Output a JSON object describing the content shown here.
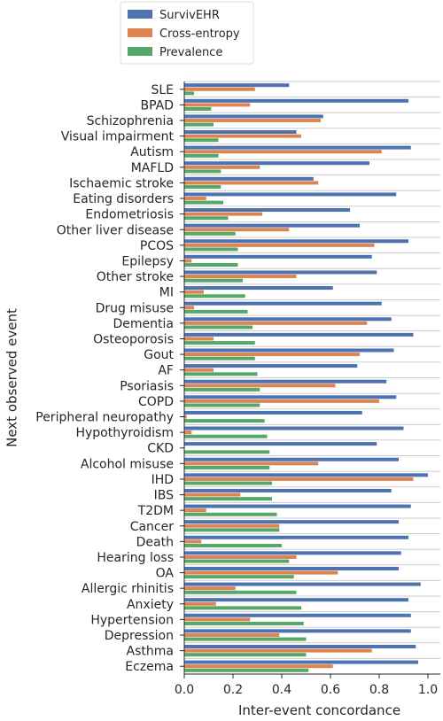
{
  "chart_data": {
    "type": "bar",
    "orientation": "horizontal",
    "xlabel": "Inter-event concordance",
    "ylabel": "Next observed event",
    "xlim": [
      0.0,
      1.05
    ],
    "xticks": [
      "0.0",
      "0.2",
      "0.4",
      "0.6",
      "0.8",
      "1.0"
    ],
    "grid": "horizontal lines between categories",
    "legend_position": "top",
    "categories": [
      "SLE",
      "BPAD",
      "Schizophrenia",
      "Visual impairment",
      "Autism",
      "MAFLD",
      "Ischaemic stroke",
      "Eating disorders",
      "Endometriosis",
      "Other liver disease",
      "PCOS",
      "Epilepsy",
      "Other stroke",
      "MI",
      "Drug misuse",
      "Dementia",
      "Osteoporosis",
      "Gout",
      "AF",
      "Psoriasis",
      "COPD",
      "Peripheral neuropathy",
      "Hypothyroidism",
      "CKD",
      "Alcohol misuse",
      "IHD",
      "IBS",
      "T2DM",
      "Cancer",
      "Death",
      "Hearing loss",
      "OA",
      "Allergic rhinitis",
      "Anxiety",
      "Hypertension",
      "Depression",
      "Asthma",
      "Eczema"
    ],
    "series": [
      {
        "name": "SurvivEHR",
        "color": "#4c72b0",
        "values": [
          0.43,
          0.92,
          0.57,
          0.46,
          0.93,
          0.76,
          0.53,
          0.87,
          0.68,
          0.72,
          0.92,
          0.77,
          0.79,
          0.61,
          0.81,
          0.85,
          0.94,
          0.86,
          0.71,
          0.83,
          0.87,
          0.73,
          0.9,
          0.79,
          0.88,
          1.0,
          0.85,
          0.93,
          0.88,
          0.92,
          0.89,
          0.88,
          0.97,
          0.92,
          0.93,
          0.93,
          0.95,
          0.96
        ]
      },
      {
        "name": "Cross-entropy",
        "color": "#dd8452",
        "values": [
          0.29,
          0.27,
          0.56,
          0.48,
          0.81,
          0.31,
          0.55,
          0.09,
          0.32,
          0.43,
          0.78,
          0.03,
          0.46,
          0.08,
          0.04,
          0.75,
          0.12,
          0.72,
          0.12,
          0.62,
          0.8,
          0.01,
          0.03,
          0.0,
          0.55,
          0.94,
          0.23,
          0.09,
          0.39,
          0.07,
          0.46,
          0.63,
          0.21,
          0.13,
          0.27,
          0.39,
          0.77,
          0.61
        ]
      },
      {
        "name": "Prevalence",
        "color": "#55a868",
        "values": [
          0.04,
          0.11,
          0.12,
          0.14,
          0.14,
          0.15,
          0.15,
          0.16,
          0.18,
          0.21,
          0.22,
          0.22,
          0.24,
          0.25,
          0.26,
          0.28,
          0.29,
          0.29,
          0.3,
          0.31,
          0.31,
          0.33,
          0.34,
          0.35,
          0.35,
          0.36,
          0.36,
          0.38,
          0.39,
          0.4,
          0.43,
          0.45,
          0.46,
          0.48,
          0.49,
          0.5,
          0.5,
          0.51
        ]
      }
    ]
  }
}
